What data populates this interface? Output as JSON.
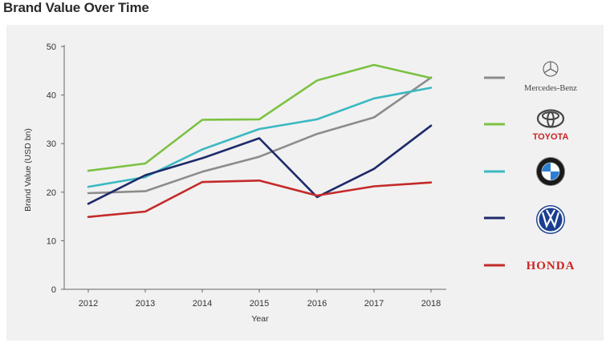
{
  "title": "Brand Value Over Time",
  "chart_data": {
    "type": "line",
    "xlabel": "Year",
    "ylabel": "Brand Value (USD bn)",
    "categories": [
      "2012",
      "2013",
      "2014",
      "2015",
      "2016",
      "2017",
      "2018"
    ],
    "yticks": [
      "0",
      "10",
      "20",
      "30",
      "40",
      "50"
    ],
    "ylim": [
      0,
      50
    ],
    "grid": false,
    "legend_position": "right",
    "series": [
      {
        "name": "Mercedes-Benz",
        "color": "#8c8c8c",
        "icon": "mercedes-star-icon",
        "values": [
          19.8,
          20.2,
          24.2,
          27.3,
          32.0,
          35.4,
          43.6
        ]
      },
      {
        "name": "TOYOTA",
        "color": "#7cc142",
        "icon": "toyota-emblem-icon",
        "values": [
          24.4,
          25.9,
          34.9,
          35.0,
          43.0,
          46.2,
          43.5
        ]
      },
      {
        "name": "",
        "color": "#3bb9c2",
        "icon": "bmw-roundel-icon",
        "values": [
          21.1,
          23.1,
          28.8,
          33.0,
          35.0,
          39.3,
          41.5
        ]
      },
      {
        "name": "",
        "color": "#1e2a6a",
        "icon": "volkswagen-logo-icon",
        "values": [
          17.6,
          23.5,
          27.0,
          31.1,
          19.0,
          24.8,
          33.7
        ]
      },
      {
        "name": "HONDA",
        "color": "#c42a2a",
        "icon": "honda-wordmark",
        "values": [
          14.9,
          16.0,
          22.1,
          22.4,
          19.3,
          21.2,
          22.0
        ]
      }
    ]
  }
}
